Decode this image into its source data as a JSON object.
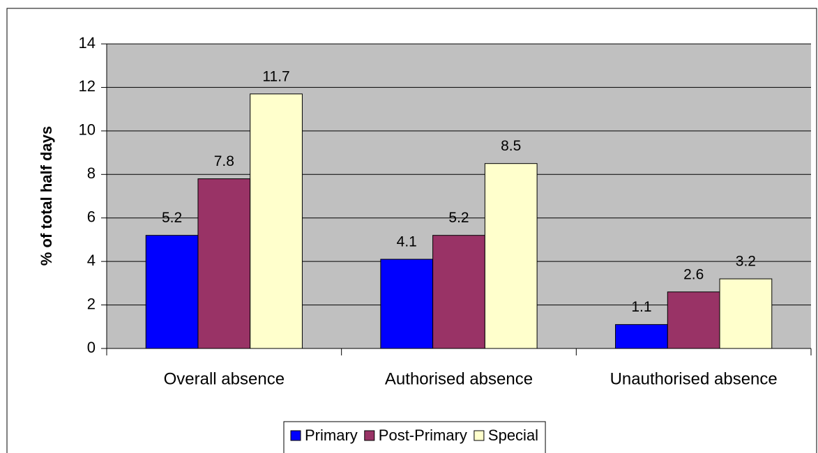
{
  "chart_data": {
    "type": "bar",
    "y_label": "% of total half days",
    "categories": [
      "Overall absence",
      "Authorised absence",
      "Unauthorised absence"
    ],
    "series": [
      {
        "name": "Primary",
        "color": "#0000ff",
        "values": [
          5.2,
          4.1,
          1.1
        ]
      },
      {
        "name": "Post-Primary",
        "color": "#993366",
        "values": [
          7.8,
          5.2,
          2.6
        ]
      },
      {
        "name": "Special",
        "color": "#ffffcc",
        "values": [
          11.7,
          8.5,
          3.2
        ]
      }
    ],
    "ylim": [
      0,
      14
    ],
    "yticks": [
      0,
      2,
      4,
      6,
      8,
      10,
      12,
      14
    ],
    "grid": true,
    "legend": "bottom"
  }
}
